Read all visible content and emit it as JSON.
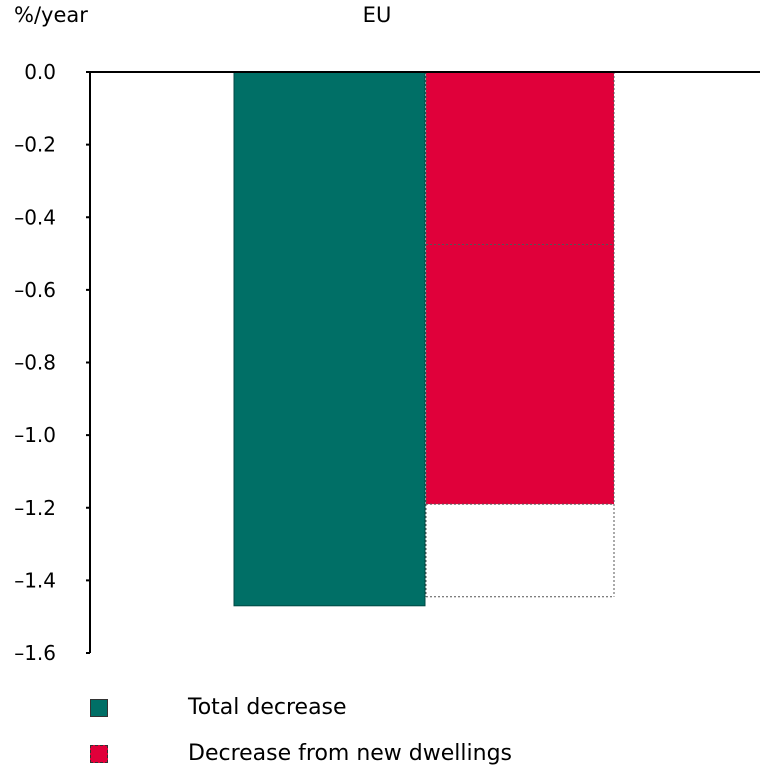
{
  "chart_data": {
    "type": "bar",
    "title": "EU",
    "ylabel": "%/year",
    "ylim": [
      -1.6,
      0.0
    ],
    "yticks": [
      0.0,
      -0.2,
      -0.4,
      -0.6,
      -0.8,
      -1.0,
      -1.2,
      -1.4,
      -1.6
    ],
    "ytick_labels": [
      "0.0",
      "–0.2",
      "–0.4",
      "–0.6",
      "–0.8",
      "–1.0",
      "–1.2",
      "–1.4",
      "–1.6"
    ],
    "grid": false,
    "series": [
      {
        "name": "Total decrease",
        "values": [
          -1.47
        ],
        "color": "#006f66"
      },
      {
        "name": "Decrease from new dwellings",
        "values": [
          -1.19
        ],
        "color": "#e0003a"
      }
    ],
    "annotations": {
      "dotted_outline_levels": [
        -0.475,
        -1.19,
        -1.445
      ]
    }
  }
}
